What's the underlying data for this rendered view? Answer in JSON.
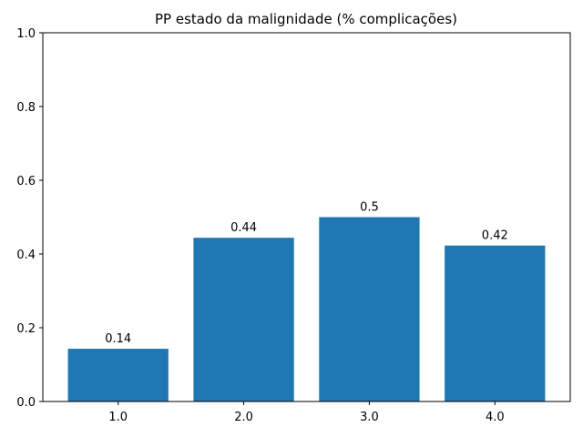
{
  "chart_data": {
    "type": "bar",
    "title": "PP estado da malignidade (% complicações)",
    "xlabel": "",
    "ylabel": "",
    "categories": [
      "1.0",
      "2.0",
      "3.0",
      "4.0"
    ],
    "values": [
      0.143,
      0.444,
      0.5,
      0.423
    ],
    "data_labels": [
      "0.14",
      "0.44",
      "0.5",
      "0.42"
    ],
    "ylim": [
      0,
      1.0
    ],
    "yticks": [
      0.0,
      0.2,
      0.4,
      0.6,
      0.8,
      1.0
    ],
    "ytick_labels": [
      "0.0",
      "0.2",
      "0.4",
      "0.6",
      "0.8",
      "1.0"
    ],
    "grid": false,
    "colors": {
      "bar": "#1f77b4"
    }
  }
}
